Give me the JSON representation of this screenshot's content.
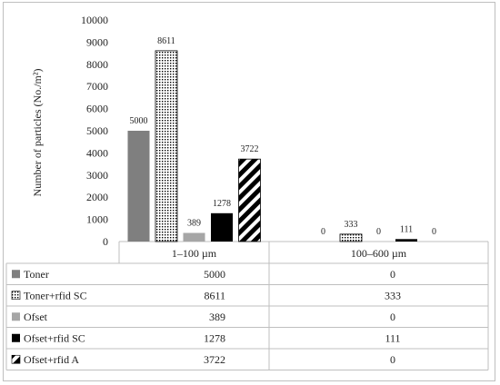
{
  "chart_data": {
    "type": "bar",
    "ylabel": "Number of particles (No./m²)",
    "ylim": [
      0,
      10000
    ],
    "yticks": [
      0,
      1000,
      2000,
      3000,
      4000,
      5000,
      6000,
      7000,
      8000,
      9000,
      10000
    ],
    "ytick_labels": [
      "0",
      "1000",
      "2000",
      "3000",
      "4000",
      "5000",
      "6000",
      "7000",
      "8000",
      "9000",
      "10000"
    ],
    "categories": [
      "1–100 µm",
      "100–600 µm"
    ],
    "series": [
      {
        "name": "Toner",
        "values": [
          5000,
          0
        ],
        "value_labels": [
          "5000",
          "0"
        ],
        "fill": "#7f7f7f",
        "pattern": "solid"
      },
      {
        "name": "Toner+rfid SC",
        "values": [
          8611,
          333
        ],
        "value_labels": [
          "8611",
          "333"
        ],
        "fill": "#000000",
        "pattern": "dots"
      },
      {
        "name": "Ofset",
        "values": [
          389,
          0
        ],
        "value_labels": [
          "389",
          "0"
        ],
        "fill": "#a6a6a6",
        "pattern": "solid"
      },
      {
        "name": "Ofset+rfid SC",
        "values": [
          1278,
          111
        ],
        "value_labels": [
          "1278",
          "111"
        ],
        "fill": "#000000",
        "pattern": "solid"
      },
      {
        "name": "Ofset+rfid A",
        "values": [
          3722,
          0
        ],
        "value_labels": [
          "3722",
          "0"
        ],
        "fill": "#000000",
        "pattern": "diagonal"
      }
    ],
    "grid": false,
    "legend": "data-table"
  }
}
